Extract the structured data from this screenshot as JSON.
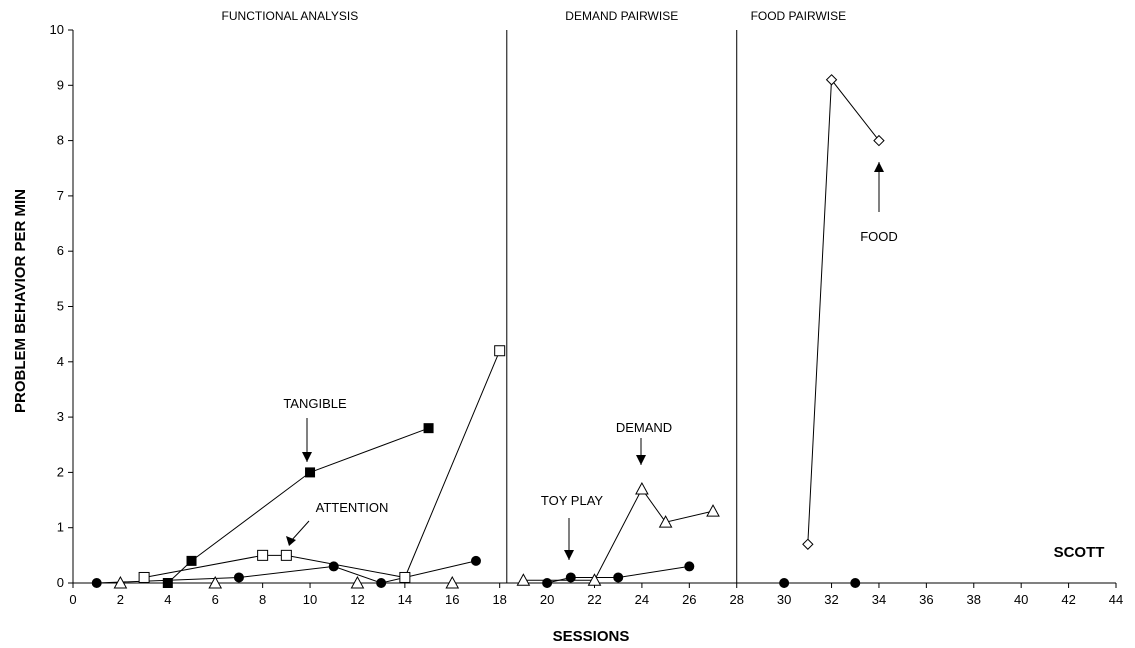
{
  "chart_data": {
    "type": "line",
    "xlabel": "SESSIONS",
    "ylabel": "PROBLEM BEHAVIOR PER MIN",
    "xlim": [
      0,
      44
    ],
    "ylim": [
      0,
      10
    ],
    "x_ticks": [
      "0",
      "2",
      "4",
      "6",
      "8",
      "10",
      "12",
      "14",
      "16",
      "18",
      "20",
      "22",
      "24",
      "26",
      "28",
      "30",
      "32",
      "34",
      "36",
      "38",
      "40",
      "42",
      "44"
    ],
    "y_ticks": [
      "0",
      "1",
      "2",
      "3",
      "4",
      "5",
      "6",
      "7",
      "8",
      "9",
      "10"
    ],
    "grid": false,
    "phases": [
      {
        "label": "FUNCTIONAL ANALYSIS",
        "x_start": 0,
        "x_end": 18.3
      },
      {
        "label": "DEMAND PAIRWISE",
        "x_start": 18.3,
        "x_end": 28
      },
      {
        "label": "FOOD PAIRWISE",
        "x_start": 28,
        "x_end": 44
      }
    ],
    "phase_lines": [
      18.3,
      28
    ],
    "subject": "SCOTT",
    "series": [
      {
        "name": "TANGIBLE",
        "marker": "filled-square",
        "segments": [
          [
            [
              4,
              0
            ],
            [
              5,
              0.4
            ],
            [
              10,
              2.0
            ],
            [
              15,
              2.8
            ]
          ]
        ]
      },
      {
        "name": "ATTENTION",
        "marker": "open-square",
        "segments": [
          [
            [
              3,
              0.1
            ],
            [
              8,
              0.5
            ],
            [
              9,
              0.5
            ],
            [
              14,
              0.1
            ],
            [
              18,
              4.2
            ]
          ]
        ]
      },
      {
        "name": "TOY PLAY",
        "marker": "filled-circle",
        "segments": [
          [
            [
              1,
              0
            ],
            [
              7,
              0.1
            ],
            [
              11,
              0.3
            ],
            [
              13,
              0
            ],
            [
              17,
              0.4
            ]
          ],
          [
            [
              20,
              0
            ],
            [
              21,
              0.1
            ],
            [
              23,
              0.1
            ],
            [
              26,
              0.3
            ]
          ],
          [
            [
              30,
              0
            ],
            [
              33,
              0
            ]
          ]
        ]
      },
      {
        "name": "DEMAND",
        "marker": "open-triangle",
        "segments": [
          [
            [
              2,
              0
            ],
            [
              6,
              0
            ],
            [
              12,
              0
            ],
            [
              16,
              0
            ]
          ],
          [
            [
              19,
              0.05
            ],
            [
              22,
              0.05
            ],
            [
              24,
              1.7
            ],
            [
              25,
              1.1
            ],
            [
              27,
              1.3
            ]
          ]
        ]
      },
      {
        "name": "FOOD",
        "marker": "open-diamond",
        "segments": [
          [
            [
              31,
              0.7
            ],
            [
              32,
              9.1
            ],
            [
              34,
              8.0
            ]
          ]
        ]
      }
    ],
    "annotations": [
      {
        "text": "TANGIBLE",
        "target": [
          10,
          2.0
        ]
      },
      {
        "text": "ATTENTION",
        "target": [
          9,
          0.5
        ]
      },
      {
        "text": "TOY PLAY",
        "target": [
          21,
          0.1
        ]
      },
      {
        "text": "DEMAND",
        "target": [
          24,
          1.7
        ]
      },
      {
        "text": "FOOD",
        "target": [
          34,
          8.0
        ]
      }
    ]
  }
}
